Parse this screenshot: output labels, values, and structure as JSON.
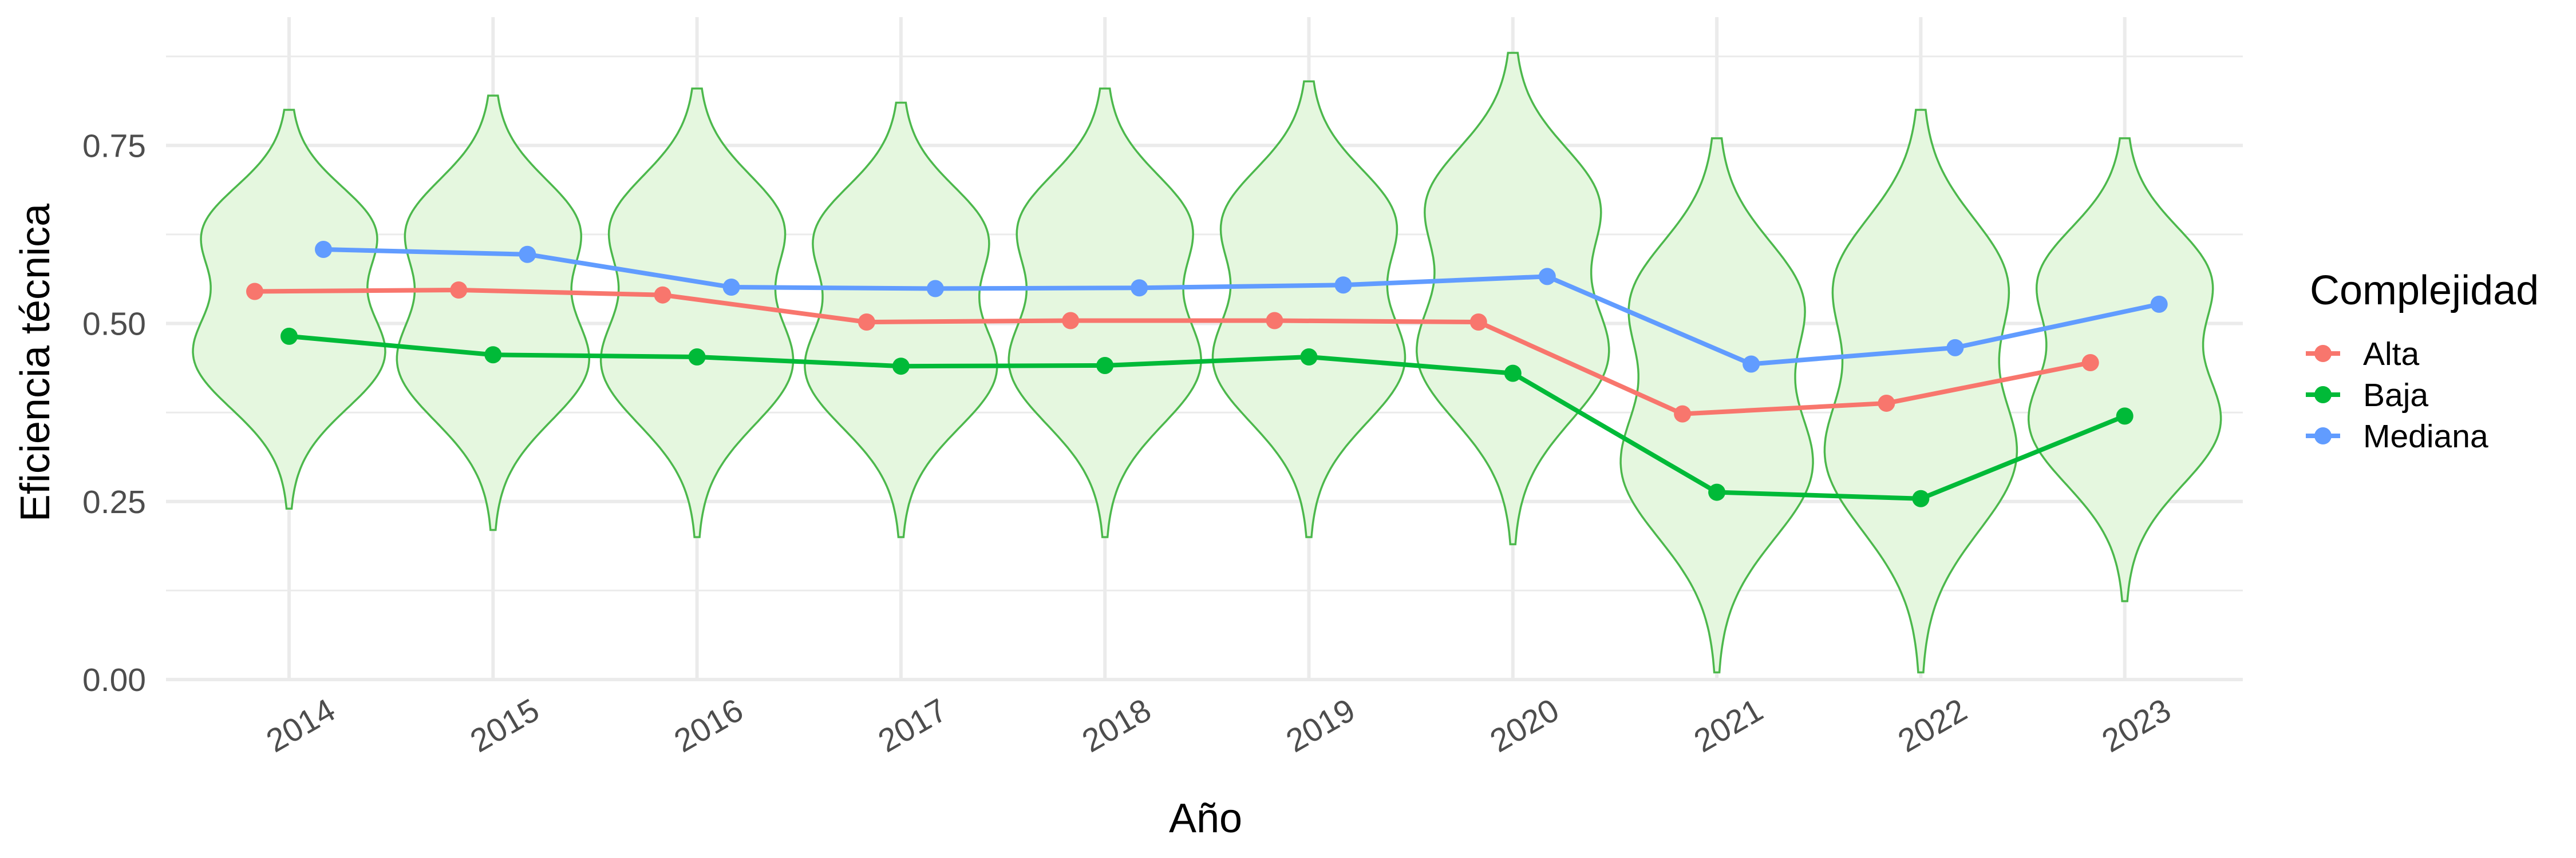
{
  "chart_data": {
    "type": "violin-line",
    "xlabel": "Año",
    "ylabel": "Eficiencia técnica",
    "categories": [
      "2014",
      "2015",
      "2016",
      "2017",
      "2018",
      "2019",
      "2020",
      "2021",
      "2022",
      "2023"
    ],
    "ylim": [
      0,
      0.89
    ],
    "yticks": [
      0.0,
      0.25,
      0.5,
      0.75
    ],
    "ytick_labels": [
      "0.00",
      "0.25",
      "0.50",
      "0.75"
    ],
    "grid": true,
    "legend": {
      "title": "Complejidad",
      "placement": "right"
    },
    "violins": {
      "fill": "#e5f7df",
      "stroke": "#4cb84c",
      "ranges": [
        [
          0.24,
          0.8
        ],
        [
          0.21,
          0.82
        ],
        [
          0.2,
          0.83
        ],
        [
          0.2,
          0.81
        ],
        [
          0.2,
          0.83
        ],
        [
          0.2,
          0.84
        ],
        [
          0.19,
          0.88
        ],
        [
          0.01,
          0.76
        ],
        [
          0.01,
          0.8
        ],
        [
          0.11,
          0.76
        ]
      ]
    },
    "series": [
      {
        "name": "Alta",
        "color": "#f8766d",
        "values": [
          0.545,
          0.547,
          0.54,
          0.502,
          0.504,
          0.504,
          0.502,
          0.373,
          0.388,
          0.445
        ]
      },
      {
        "name": "Baja",
        "color": "#00ba38",
        "values": [
          0.482,
          0.456,
          0.453,
          0.44,
          0.441,
          0.453,
          0.43,
          0.263,
          0.254,
          0.37
        ]
      },
      {
        "name": "Mediana",
        "color": "#619cff",
        "values": [
          0.604,
          0.597,
          0.551,
          0.549,
          0.55,
          0.554,
          0.566,
          0.443,
          0.466,
          0.527
        ]
      }
    ]
  }
}
